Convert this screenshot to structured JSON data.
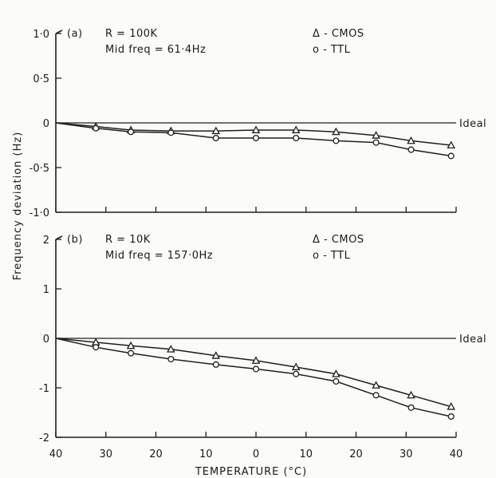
{
  "figure": {
    "ylabel": "Frequency deviation (Hz)",
    "xlabel": "TEMPERATURE (°C)",
    "x_tick_labels": [
      "40",
      "30",
      "20",
      "10",
      "0",
      "10",
      "20",
      "30",
      "40"
    ],
    "ideal_label": "Ideal"
  },
  "chart_data": [
    {
      "type": "line",
      "panel_label": "(a)",
      "annotation_line1": "R = 100K",
      "annotation_line2": "Mid freq = 61·4Hz",
      "legend": [
        "Δ - CMOS",
        "o - TTL"
      ],
      "legend_placement": "top-right",
      "x_axis": "temperature, °C (-40 to 40)",
      "xlim": [
        -40,
        40
      ],
      "ylim": [
        -1.0,
        1.0
      ],
      "y_ticks": [
        1.0,
        0.5,
        0,
        -0.5,
        -1.0
      ],
      "y_tick_labels": [
        "1·0",
        "0·5",
        "0",
        "-0·5",
        "-1·0"
      ],
      "ideal": 0,
      "series": [
        {
          "name": "CMOS",
          "marker": "triangle",
          "x": [
            -40,
            -32,
            -25,
            -17,
            -8,
            0,
            8,
            16,
            24,
            31,
            39
          ],
          "y": [
            0,
            -0.04,
            -0.08,
            -0.09,
            -0.09,
            -0.08,
            -0.08,
            -0.1,
            -0.14,
            -0.2,
            -0.25
          ]
        },
        {
          "name": "TTL",
          "marker": "circle",
          "x": [
            -40,
            -32,
            -25,
            -17,
            -8,
            0,
            8,
            16,
            24,
            31,
            39
          ],
          "y": [
            0,
            -0.06,
            -0.1,
            -0.11,
            -0.17,
            -0.17,
            -0.17,
            -0.2,
            -0.22,
            -0.3,
            -0.37
          ]
        }
      ]
    },
    {
      "type": "line",
      "panel_label": "(b)",
      "annotation_line1": "R = 10K",
      "annotation_line2": "Mid freq = 157·0Hz",
      "legend": [
        "Δ - CMOS",
        "o - TTL"
      ],
      "legend_placement": "top-right",
      "x_axis": "temperature, °C (-40 to 40)",
      "xlim": [
        -40,
        40
      ],
      "ylim": [
        -2,
        2
      ],
      "y_ticks": [
        2,
        1,
        0,
        -1,
        -2
      ],
      "y_tick_labels": [
        "2",
        "1",
        "0",
        "-1",
        "-2"
      ],
      "ideal": 0,
      "series": [
        {
          "name": "CMOS",
          "marker": "triangle",
          "x": [
            -40,
            -32,
            -25,
            -17,
            -8,
            0,
            8,
            16,
            24,
            31,
            39
          ],
          "y": [
            0,
            -0.08,
            -0.15,
            -0.22,
            -0.35,
            -0.45,
            -0.58,
            -0.72,
            -0.95,
            -1.15,
            -1.38
          ]
        },
        {
          "name": "TTL",
          "marker": "circle",
          "x": [
            -40,
            -32,
            -25,
            -17,
            -8,
            0,
            8,
            16,
            24,
            31,
            39
          ],
          "y": [
            0,
            -0.18,
            -0.3,
            -0.42,
            -0.53,
            -0.62,
            -0.72,
            -0.87,
            -1.15,
            -1.4,
            -1.58
          ]
        }
      ]
    }
  ]
}
